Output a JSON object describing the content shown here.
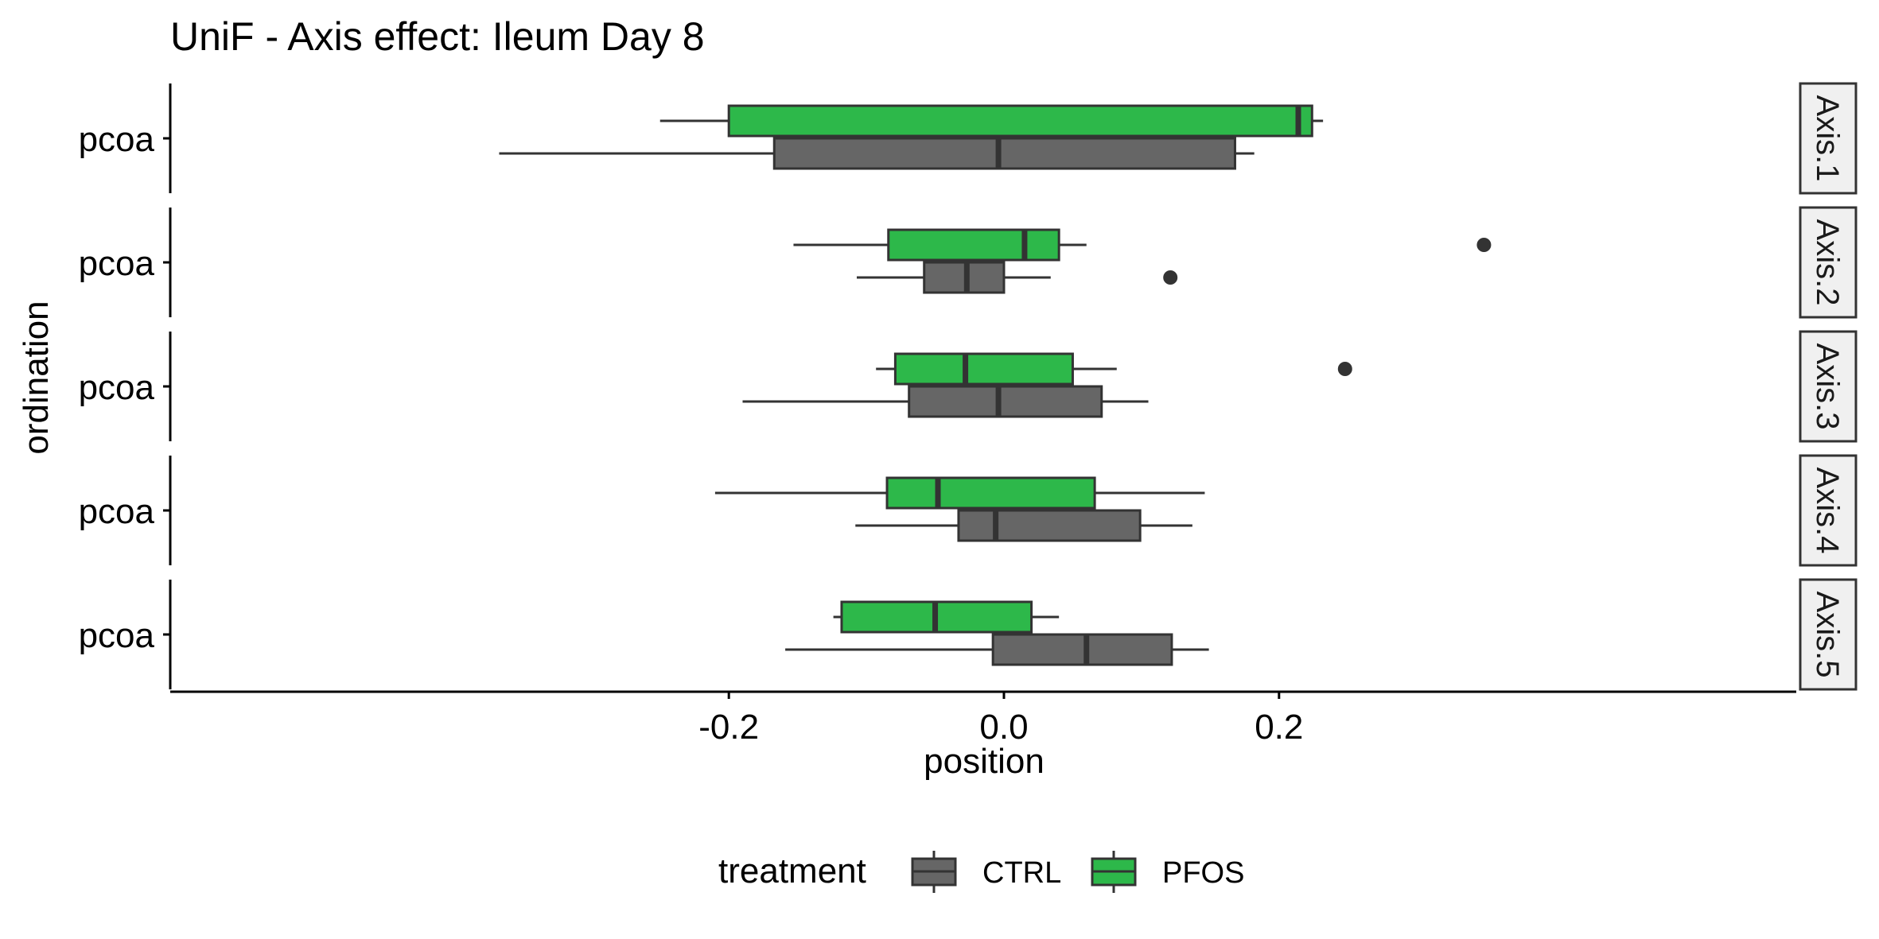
{
  "chart_data": {
    "type": "boxplot",
    "orientation": "horizontal",
    "title": "UniF - Axis effect: Ileum Day 8",
    "xlabel": "position",
    "ylabel": "ordination",
    "x_ticks": [
      "-0.2",
      "0.0",
      "0.2"
    ],
    "x_tick_values": [
      -0.2,
      0.0,
      0.2
    ],
    "xlim": [
      -0.4,
      0.39
    ],
    "grid": false,
    "legend": {
      "position": "bottom",
      "title": "treatment",
      "entries": [
        "CTRL",
        "PFOS"
      ]
    },
    "colors": {
      "CTRL": "#666666",
      "PFOS": "#2db84a",
      "outline": "#333333",
      "strip_bg": "#f0f0f0"
    },
    "panels": [
      {
        "strip": "Axis.1",
        "category": "pcoa",
        "boxes": [
          {
            "group": "PFOS",
            "whisker_low": -0.25,
            "q1": -0.2,
            "median": 0.214,
            "q3": 0.224,
            "whisker_high": 0.232,
            "outliers": []
          },
          {
            "group": "CTRL",
            "whisker_low": -0.367,
            "q1": -0.167,
            "median": -0.004,
            "q3": 0.168,
            "whisker_high": 0.182,
            "outliers": []
          }
        ]
      },
      {
        "strip": "Axis.2",
        "category": "pcoa",
        "boxes": [
          {
            "group": "PFOS",
            "whisker_low": -0.153,
            "q1": -0.084,
            "median": 0.015,
            "q3": 0.04,
            "whisker_high": 0.06,
            "outliers": [
              0.349
            ]
          },
          {
            "group": "CTRL",
            "whisker_low": -0.107,
            "q1": -0.058,
            "median": -0.027,
            "q3": 0.0,
            "whisker_high": 0.034,
            "outliers": [
              0.121
            ]
          }
        ]
      },
      {
        "strip": "Axis.3",
        "category": "pcoa",
        "boxes": [
          {
            "group": "PFOS",
            "whisker_low": -0.093,
            "q1": -0.079,
            "median": -0.028,
            "q3": 0.05,
            "whisker_high": 0.082,
            "outliers": [
              0.248
            ]
          },
          {
            "group": "CTRL",
            "whisker_low": -0.19,
            "q1": -0.069,
            "median": -0.004,
            "q3": 0.071,
            "whisker_high": 0.105,
            "outliers": []
          }
        ]
      },
      {
        "strip": "Axis.4",
        "category": "pcoa",
        "boxes": [
          {
            "group": "PFOS",
            "whisker_low": -0.21,
            "q1": -0.085,
            "median": -0.048,
            "q3": 0.066,
            "whisker_high": 0.146,
            "outliers": []
          },
          {
            "group": "CTRL",
            "whisker_low": -0.108,
            "q1": -0.033,
            "median": -0.006,
            "q3": 0.099,
            "whisker_high": 0.137,
            "outliers": []
          }
        ]
      },
      {
        "strip": "Axis.5",
        "category": "pcoa",
        "boxes": [
          {
            "group": "PFOS",
            "whisker_low": -0.124,
            "q1": -0.118,
            "median": -0.05,
            "q3": 0.02,
            "whisker_high": 0.04,
            "outliers": []
          },
          {
            "group": "CTRL",
            "whisker_low": -0.159,
            "q1": -0.008,
            "median": 0.06,
            "q3": 0.122,
            "whisker_high": 0.149,
            "outliers": []
          }
        ]
      }
    ]
  }
}
